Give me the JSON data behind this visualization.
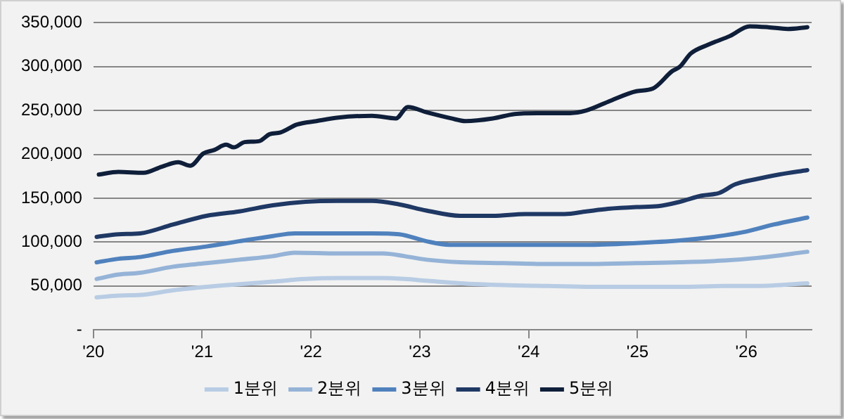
{
  "chart_data": {
    "type": "line",
    "grid": "y",
    "legend": "bottom",
    "marker": "none",
    "line_style": "solid",
    "xlim": [
      2020,
      2026.6
    ],
    "xticks": [
      {
        "value": 2020,
        "label": "'20"
      },
      {
        "value": 2021,
        "label": "'21"
      },
      {
        "value": 2022,
        "label": "'22"
      },
      {
        "value": 2023,
        "label": "'23"
      },
      {
        "value": 2024,
        "label": "'24"
      },
      {
        "value": 2025,
        "label": "'25"
      },
      {
        "value": 2026,
        "label": "'26"
      }
    ],
    "ylim": [
      0,
      350000
    ],
    "yticks": [
      {
        "value": 0,
        "label": "-"
      },
      {
        "value": 50000,
        "label": "50,000"
      },
      {
        "value": 100000,
        "label": "100,000"
      },
      {
        "value": 150000,
        "label": "150,000"
      },
      {
        "value": 200000,
        "label": "200,000"
      },
      {
        "value": 250000,
        "label": "250,000"
      },
      {
        "value": 300000,
        "label": "300,000"
      },
      {
        "value": 350000,
        "label": "350,000"
      }
    ],
    "series": [
      {
        "name": "1분위",
        "color": "#b8cce4",
        "x": [
          2020.03,
          2020.23,
          2020.46,
          2020.73,
          2021.04,
          2021.34,
          2021.65,
          2021.95,
          2022.25,
          2022.66,
          2022.86,
          2023.06,
          2023.37,
          2023.77,
          2024.18,
          2024.58,
          2024.99,
          2025.39,
          2025.8,
          2026.1,
          2026.56
        ],
        "values": [
          37000,
          39000,
          40000,
          45000,
          49000,
          52000,
          55000,
          58000,
          59000,
          59000,
          58000,
          56000,
          53000,
          51000,
          50000,
          49000,
          49000,
          49000,
          50000,
          50000,
          53000
        ]
      },
      {
        "name": "2분위",
        "color": "#95b3d7",
        "x": [
          2020.03,
          2020.23,
          2020.43,
          2020.73,
          2021.04,
          2021.34,
          2021.65,
          2021.85,
          2022.25,
          2022.66,
          2022.86,
          2023.06,
          2023.37,
          2023.77,
          2024.18,
          2024.58,
          2024.99,
          2025.39,
          2025.8,
          2026.1,
          2026.56
        ],
        "values": [
          58000,
          63000,
          65000,
          72000,
          76000,
          80000,
          84000,
          88000,
          87000,
          87000,
          84000,
          80000,
          77000,
          76000,
          75000,
          75000,
          76000,
          77000,
          79000,
          82000,
          89000
        ]
      },
      {
        "name": "3분위",
        "color": "#4f81bd",
        "x": [
          2020.03,
          2020.23,
          2020.43,
          2020.73,
          2021.04,
          2021.34,
          2021.65,
          2021.85,
          2022.25,
          2022.56,
          2022.81,
          2023.06,
          2023.27,
          2023.67,
          2024.08,
          2024.53,
          2024.99,
          2025.39,
          2025.7,
          2026.0,
          2026.25,
          2026.56
        ],
        "values": [
          77000,
          81000,
          83000,
          90000,
          95000,
          101000,
          107000,
          110000,
          110000,
          110000,
          109000,
          101000,
          97000,
          97000,
          97000,
          97000,
          99000,
          102000,
          106000,
          112000,
          120000,
          128000
        ]
      },
      {
        "name": "4분위",
        "color": "#1f3864",
        "x": [
          2020.03,
          2020.23,
          2020.43,
          2020.73,
          2021.04,
          2021.34,
          2021.65,
          2021.95,
          2022.25,
          2022.56,
          2022.81,
          2023.06,
          2023.37,
          2023.67,
          2023.97,
          2024.33,
          2024.53,
          2024.73,
          2024.99,
          2025.19,
          2025.39,
          2025.59,
          2025.75,
          2025.9,
          2026.1,
          2026.3,
          2026.56
        ],
        "values": [
          106000,
          109000,
          110000,
          120000,
          130000,
          135000,
          142000,
          146000,
          147000,
          147000,
          143000,
          136000,
          130000,
          130000,
          132000,
          132000,
          135000,
          138000,
          140000,
          141000,
          146000,
          153000,
          156000,
          166000,
          172000,
          177000,
          182000
        ]
      },
      {
        "name": "5분위",
        "color": "#0f1f3a",
        "x": [
          2020.05,
          2020.23,
          2020.46,
          2020.63,
          2020.78,
          2020.89,
          2021.01,
          2021.11,
          2021.22,
          2021.29,
          2021.39,
          2021.52,
          2021.62,
          2021.72,
          2021.87,
          2022.05,
          2022.25,
          2022.56,
          2022.78,
          2022.89,
          2023.06,
          2023.29,
          2023.42,
          2023.67,
          2023.87,
          2024.08,
          2024.38,
          2024.53,
          2024.73,
          2024.99,
          2025.14,
          2025.32,
          2025.39,
          2025.49,
          2025.65,
          2025.85,
          2026.03,
          2026.2,
          2026.38,
          2026.56
        ],
        "values": [
          177000,
          180000,
          179000,
          186000,
          191000,
          187000,
          201000,
          205000,
          211000,
          208000,
          214000,
          215000,
          223000,
          225000,
          234000,
          238000,
          242000,
          244000,
          241000,
          254000,
          248000,
          241000,
          238000,
          241000,
          246000,
          247000,
          247000,
          250000,
          260000,
          272000,
          275000,
          295000,
          300000,
          315000,
          325000,
          335000,
          346000,
          345000,
          343000,
          345000
        ]
      }
    ]
  }
}
